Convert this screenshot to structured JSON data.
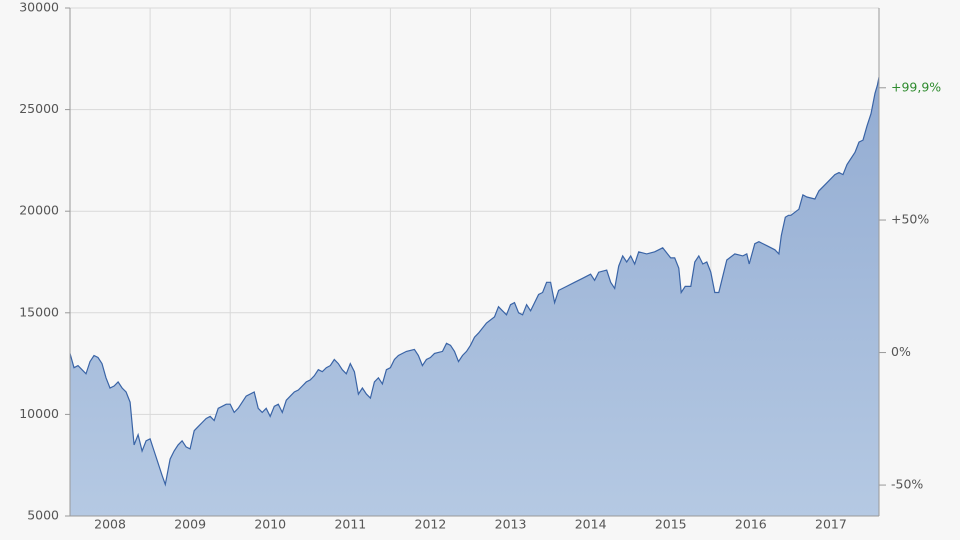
{
  "chart_data": {
    "type": "area",
    "x": [
      2008.0,
      2008.05,
      2008.1,
      2008.15,
      2008.2,
      2008.25,
      2008.3,
      2008.35,
      2008.4,
      2008.45,
      2008.5,
      2008.55,
      2008.6,
      2008.65,
      2008.7,
      2008.75,
      2008.8,
      2008.85,
      2008.9,
      2008.95,
      2009.0,
      2009.05,
      2009.1,
      2009.15,
      2009.19,
      2009.25,
      2009.3,
      2009.35,
      2009.4,
      2009.45,
      2009.5,
      2009.55,
      2009.6,
      2009.65,
      2009.7,
      2009.75,
      2009.8,
      2009.85,
      2009.9,
      2009.95,
      2010.0,
      2010.05,
      2010.1,
      2010.15,
      2010.2,
      2010.3,
      2010.35,
      2010.4,
      2010.45,
      2010.5,
      2010.55,
      2010.6,
      2010.65,
      2010.7,
      2010.75,
      2010.8,
      2010.85,
      2010.9,
      2010.95,
      2011.0,
      2011.05,
      2011.1,
      2011.15,
      2011.2,
      2011.25,
      2011.3,
      2011.35,
      2011.4,
      2011.45,
      2011.5,
      2011.55,
      2011.6,
      2011.65,
      2011.7,
      2011.75,
      2011.8,
      2011.85,
      2011.9,
      2011.95,
      2012.0,
      2012.05,
      2012.1,
      2012.2,
      2012.3,
      2012.35,
      2012.4,
      2012.45,
      2012.5,
      2012.55,
      2012.65,
      2012.7,
      2012.75,
      2012.8,
      2012.85,
      2012.9,
      2012.95,
      2013.0,
      2013.05,
      2013.1,
      2013.2,
      2013.3,
      2013.35,
      2013.4,
      2013.45,
      2013.5,
      2013.55,
      2013.6,
      2013.65,
      2013.7,
      2013.75,
      2013.8,
      2013.85,
      2013.9,
      2013.95,
      2014.0,
      2014.05,
      2014.1,
      2014.2,
      2014.3,
      2014.4,
      2014.5,
      2014.55,
      2014.6,
      2014.7,
      2014.75,
      2014.8,
      2014.85,
      2014.9,
      2014.95,
      2015.0,
      2015.05,
      2015.1,
      2015.2,
      2015.3,
      2015.4,
      2015.5,
      2015.55,
      2015.6,
      2015.63,
      2015.68,
      2015.75,
      2015.8,
      2015.85,
      2015.9,
      2015.95,
      2016.0,
      2016.05,
      2016.1,
      2016.15,
      2016.2,
      2016.3,
      2016.4,
      2016.45,
      2016.48,
      2016.55,
      2016.6,
      2016.7,
      2016.8,
      2016.85,
      2016.88,
      2016.93,
      2016.97,
      2017.0,
      2017.1,
      2017.15,
      2017.2,
      2017.3,
      2017.35,
      2017.45,
      2017.55,
      2017.6,
      2017.65,
      2017.7,
      2017.8,
      2017.85,
      2017.9,
      2017.95,
      2018.0,
      2018.05,
      2018.08,
      2018.1
    ],
    "values": [
      13000,
      12300,
      12400,
      12200,
      12000,
      12600,
      12900,
      12800,
      12500,
      11800,
      11300,
      11400,
      11600,
      11300,
      11100,
      10600,
      8500,
      9000,
      8200,
      8700,
      8800,
      8200,
      7600,
      7000,
      6550,
      7800,
      8200,
      8500,
      8700,
      8400,
      8300,
      9200,
      9400,
      9600,
      9800,
      9900,
      9700,
      10300,
      10400,
      10500,
      10500,
      10100,
      10300,
      10600,
      10900,
      11100,
      10300,
      10100,
      10300,
      9900,
      10400,
      10500,
      10100,
      10700,
      10900,
      11100,
      11200,
      11400,
      11600,
      11700,
      11900,
      12200,
      12100,
      12300,
      12400,
      12700,
      12500,
      12200,
      12000,
      12500,
      12100,
      11000,
      11300,
      11000,
      10800,
      11600,
      11800,
      11500,
      12200,
      12300,
      12700,
      12900,
      13100,
      13200,
      12900,
      12400,
      12700,
      12800,
      13000,
      13100,
      13500,
      13400,
      13100,
      12600,
      12900,
      13100,
      13400,
      13800,
      14000,
      14500,
      14800,
      15300,
      15100,
      14900,
      15400,
      15500,
      15000,
      14900,
      15400,
      15100,
      15500,
      15900,
      16000,
      16500,
      16500,
      15500,
      16100,
      16300,
      16500,
      16700,
      16900,
      16600,
      17000,
      17100,
      16500,
      16200,
      17300,
      17800,
      17500,
      17800,
      17400,
      18000,
      17900,
      18000,
      18200,
      17700,
      17700,
      17200,
      16000,
      16300,
      16300,
      17500,
      17800,
      17400,
      17500,
      17000,
      16000,
      16000,
      16800,
      17600,
      17900,
      17800,
      17900,
      17400,
      18400,
      18500,
      18300,
      18100,
      17900,
      18800,
      19700,
      19800,
      19800,
      20100,
      20800,
      20700,
      20600,
      21000,
      21400,
      21800,
      21900,
      21800,
      22300,
      22900,
      23400,
      23500,
      24200,
      24800,
      25800,
      26200,
      26600
    ],
    "color": "#3a64a6",
    "xlim": [
      2008.0,
      2018.1
    ],
    "xticks": [
      {
        "value": 2008,
        "label": "2008"
      },
      {
        "value": 2009,
        "label": "2009"
      },
      {
        "value": 2010,
        "label": "2010"
      },
      {
        "value": 2011,
        "label": "2011"
      },
      {
        "value": 2012,
        "label": "2012"
      },
      {
        "value": 2013,
        "label": "2013"
      },
      {
        "value": 2014,
        "label": "2014"
      },
      {
        "value": 2015,
        "label": "2015"
      },
      {
        "value": 2016,
        "label": "2016"
      },
      {
        "value": 2017,
        "label": "2017"
      }
    ],
    "ylim": [
      5000,
      30000
    ],
    "yticks": [
      5000,
      10000,
      15000,
      20000,
      25000,
      30000
    ],
    "y2lim": [
      -61.67,
      130.0
    ],
    "y2ticks": [
      {
        "value": -50,
        "label": "-50%"
      },
      {
        "value": 0,
        "label": "0%"
      },
      {
        "value": 50,
        "label": "+50%"
      },
      {
        "value": 99.9,
        "label": "+99,9%"
      }
    ],
    "grid": true
  }
}
